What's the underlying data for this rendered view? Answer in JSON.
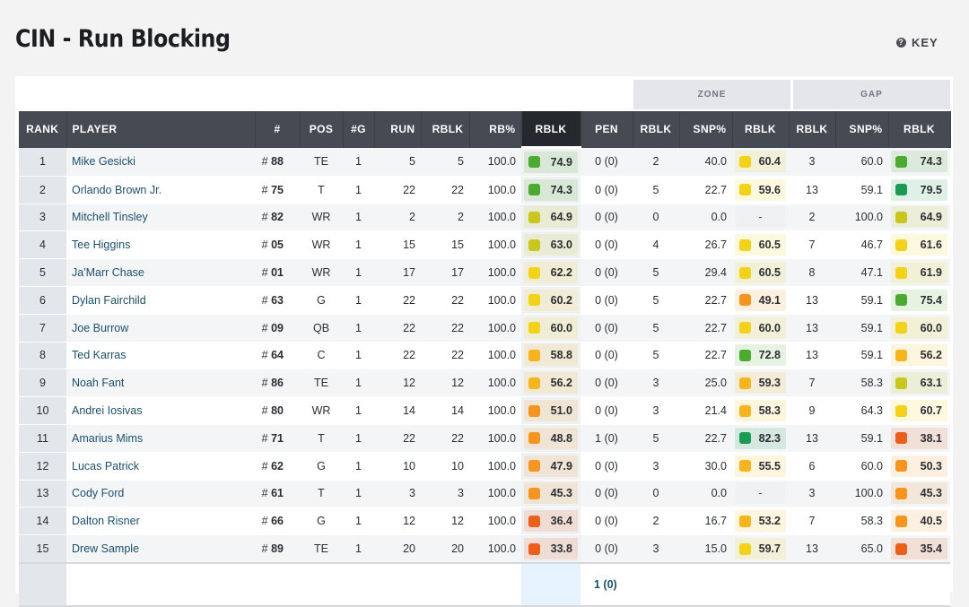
{
  "page": {
    "title": "CIN - Run Blocking",
    "key_label": "KEY",
    "key_icon": "question-circle-icon"
  },
  "groups": {
    "zone": "ZONE",
    "gap": "GAP"
  },
  "headers": [
    "RANK",
    "PLAYER",
    "#",
    "POS",
    "#G",
    "RUN",
    "RBLK",
    "RB%",
    "RBLK",
    "PEN",
    "RBLK",
    "SNP%",
    "RBLK",
    "RBLK",
    "SNP%",
    "RBLK"
  ],
  "grade_colors": {
    "dark_green": "#1a9a54",
    "green": "#4caa32",
    "lime": "#c7c71f",
    "yellow": "#f2d21a",
    "amber": "#f6b51e",
    "orange": "#f39520",
    "red_orange": "#ea5f1c"
  },
  "rows": [
    [
      "1",
      "Mike Gesicki",
      "# 88",
      "TE",
      "1",
      "5",
      "5",
      "100.0",
      "74.9",
      "0 (0)",
      "2",
      "40.0",
      "60.4",
      "3",
      "60.0",
      "74.3"
    ],
    [
      "2",
      "Orlando Brown Jr.",
      "# 75",
      "T",
      "1",
      "22",
      "22",
      "100.0",
      "74.3",
      "0 (0)",
      "5",
      "22.7",
      "59.6",
      "13",
      "59.1",
      "79.5"
    ],
    [
      "3",
      "Mitchell Tinsley",
      "# 82",
      "WR",
      "1",
      "2",
      "2",
      "100.0",
      "64.9",
      "0 (0)",
      "0",
      "0.0",
      "-",
      "2",
      "100.0",
      "64.9"
    ],
    [
      "4",
      "Tee Higgins",
      "# 05",
      "WR",
      "1",
      "15",
      "15",
      "100.0",
      "63.0",
      "0 (0)",
      "4",
      "26.7",
      "60.5",
      "7",
      "46.7",
      "61.6"
    ],
    [
      "5",
      "Ja'Marr Chase",
      "# 01",
      "WR",
      "1",
      "17",
      "17",
      "100.0",
      "62.2",
      "0 (0)",
      "5",
      "29.4",
      "60.5",
      "8",
      "47.1",
      "61.9"
    ],
    [
      "6",
      "Dylan Fairchild",
      "# 63",
      "G",
      "1",
      "22",
      "22",
      "100.0",
      "60.2",
      "0 (0)",
      "5",
      "22.7",
      "49.1",
      "13",
      "59.1",
      "75.4"
    ],
    [
      "7",
      "Joe Burrow",
      "# 09",
      "QB",
      "1",
      "22",
      "22",
      "100.0",
      "60.0",
      "0 (0)",
      "5",
      "22.7",
      "60.0",
      "13",
      "59.1",
      "60.0"
    ],
    [
      "8",
      "Ted Karras",
      "# 64",
      "C",
      "1",
      "22",
      "22",
      "100.0",
      "58.8",
      "0 (0)",
      "5",
      "22.7",
      "72.8",
      "13",
      "59.1",
      "56.2"
    ],
    [
      "9",
      "Noah Fant",
      "# 86",
      "TE",
      "1",
      "12",
      "12",
      "100.0",
      "56.2",
      "0 (0)",
      "3",
      "25.0",
      "59.3",
      "7",
      "58.3",
      "63.1"
    ],
    [
      "10",
      "Andrei Iosivas",
      "# 80",
      "WR",
      "1",
      "14",
      "14",
      "100.0",
      "51.0",
      "0 (0)",
      "3",
      "21.4",
      "58.3",
      "9",
      "64.3",
      "60.7"
    ],
    [
      "11",
      "Amarius Mims",
      "# 71",
      "T",
      "1",
      "22",
      "22",
      "100.0",
      "48.8",
      "1 (0)",
      "5",
      "22.7",
      "82.3",
      "13",
      "59.1",
      "38.1"
    ],
    [
      "12",
      "Lucas Patrick",
      "# 62",
      "G",
      "1",
      "10",
      "10",
      "100.0",
      "47.9",
      "0 (0)",
      "3",
      "30.0",
      "55.5",
      "6",
      "60.0",
      "50.3"
    ],
    [
      "13",
      "Cody Ford",
      "# 61",
      "T",
      "1",
      "3",
      "3",
      "100.0",
      "45.3",
      "0 (0)",
      "0",
      "0.0",
      "-",
      "3",
      "100.0",
      "45.3"
    ],
    [
      "14",
      "Dalton Risner",
      "# 66",
      "G",
      "1",
      "12",
      "12",
      "100.0",
      "36.4",
      "0 (0)",
      "2",
      "16.7",
      "53.2",
      "7",
      "58.3",
      "40.5"
    ],
    [
      "15",
      "Drew Sample",
      "# 89",
      "TE",
      "1",
      "20",
      "20",
      "100.0",
      "33.8",
      "0 (0)",
      "3",
      "15.0",
      "59.7",
      "13",
      "65.0",
      "35.4"
    ]
  ],
  "totals": {
    "pen": "1 (0)"
  }
}
